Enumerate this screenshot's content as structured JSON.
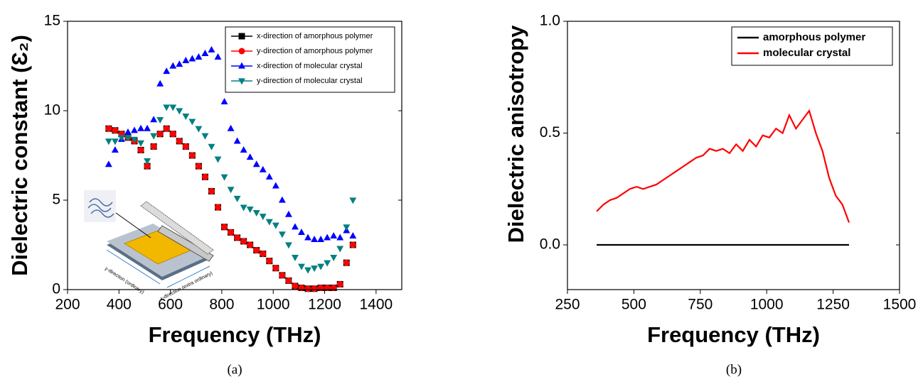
{
  "chart_data": [
    {
      "type": "scatter",
      "caption": "(a)",
      "x_label": "Frequency (THz)",
      "y_label": "Dielectric constant (Ɛ₂)",
      "annotations": [
        "y-direction (ordinary)",
        "x-direction (extra ordinary)"
      ],
      "x": [
        360,
        385,
        410,
        435,
        460,
        485,
        510,
        535,
        560,
        585,
        610,
        635,
        660,
        685,
        710,
        735,
        760,
        785,
        810,
        835,
        860,
        885,
        910,
        935,
        960,
        985,
        1010,
        1035,
        1060,
        1085,
        1110,
        1135,
        1160,
        1185,
        1210,
        1235,
        1260,
        1285,
        1310
      ],
      "series": [
        {
          "name": "x-direction of amorphous polymer",
          "color": "#000000",
          "marker": "square",
          "values": [
            9.0,
            8.9,
            8.7,
            8.5,
            8.3,
            7.8,
            6.9,
            8.0,
            8.7,
            9.0,
            8.7,
            8.3,
            8.0,
            7.5,
            6.9,
            6.3,
            5.5,
            4.6,
            3.5,
            3.2,
            2.9,
            2.7,
            2.5,
            2.2,
            2.0,
            1.6,
            1.2,
            0.8,
            0.5,
            0.2,
            0.1,
            0.05,
            0.05,
            0.1,
            0.1,
            0.1,
            0.3,
            1.5,
            2.5
          ]
        },
        {
          "name": "y-direction of amorphous polymer",
          "color": "#ff0000",
          "marker": "circle",
          "values": [
            9.0,
            8.9,
            8.7,
            8.5,
            8.3,
            7.8,
            6.9,
            8.0,
            8.7,
            9.0,
            8.7,
            8.3,
            8.0,
            7.5,
            6.9,
            6.3,
            5.5,
            4.6,
            3.5,
            3.2,
            2.9,
            2.7,
            2.5,
            2.2,
            2.0,
            1.6,
            1.2,
            0.8,
            0.5,
            0.2,
            0.1,
            0.05,
            0.05,
            0.1,
            0.1,
            0.1,
            0.3,
            1.5,
            2.5
          ]
        },
        {
          "name": "x-direction of molecular crystal",
          "color": "#0000ff",
          "marker": "triangle-up",
          "values": [
            7.0,
            7.8,
            8.4,
            8.8,
            8.9,
            9.0,
            9.0,
            9.5,
            11.5,
            12.2,
            12.5,
            12.6,
            12.8,
            12.9,
            13.0,
            13.2,
            13.4,
            13.0,
            10.5,
            9.0,
            8.3,
            7.8,
            7.4,
            7.0,
            6.7,
            6.3,
            5.8,
            5.0,
            4.2,
            3.5,
            3.2,
            2.9,
            2.8,
            2.8,
            2.9,
            3.0,
            2.9,
            3.3,
            3.0
          ]
        },
        {
          "name": "y-direction of molecular crystal",
          "color": "#008080",
          "marker": "triangle-down",
          "values": [
            8.3,
            8.3,
            8.5,
            8.5,
            8.4,
            8.2,
            7.2,
            8.6,
            9.5,
            10.2,
            10.2,
            10.0,
            9.7,
            9.4,
            9.0,
            8.6,
            8.0,
            7.3,
            6.3,
            5.6,
            5.1,
            4.6,
            4.5,
            4.3,
            4.1,
            3.8,
            3.6,
            3.1,
            2.5,
            1.8,
            1.3,
            1.1,
            1.2,
            1.3,
            1.5,
            1.8,
            2.3,
            3.5,
            5.0
          ]
        }
      ],
      "xlim": [
        200,
        1500
      ],
      "xticks": [
        200,
        400,
        600,
        800,
        1000,
        1200,
        1400
      ],
      "ylim": [
        0,
        15
      ],
      "yticks": [
        0,
        5,
        10,
        15
      ],
      "legend": "upper right"
    },
    {
      "type": "line",
      "caption": "(b)",
      "x_label": "Frequency (THz)",
      "y_label": "Dielectric anisotropy",
      "x": [
        360,
        385,
        410,
        435,
        460,
        485,
        510,
        535,
        560,
        585,
        610,
        635,
        660,
        685,
        710,
        735,
        760,
        785,
        810,
        835,
        860,
        885,
        910,
        935,
        960,
        985,
        1010,
        1035,
        1060,
        1085,
        1110,
        1135,
        1160,
        1185,
        1210,
        1235,
        1260,
        1285,
        1310
      ],
      "series": [
        {
          "name": "amorphous polymer",
          "color": "#000000",
          "values": [
            0,
            0,
            0,
            0,
            0,
            0,
            0,
            0,
            0,
            0,
            0,
            0,
            0,
            0,
            0,
            0,
            0,
            0,
            0,
            0,
            0,
            0,
            0,
            0,
            0,
            0,
            0,
            0,
            0,
            0,
            0,
            0,
            0,
            0,
            0,
            0,
            0,
            0,
            0
          ]
        },
        {
          "name": "molecular crystal",
          "color": "#ff0000",
          "values": [
            0.15,
            0.18,
            0.2,
            0.21,
            0.23,
            0.25,
            0.26,
            0.25,
            0.26,
            0.27,
            0.29,
            0.31,
            0.33,
            0.35,
            0.37,
            0.39,
            0.4,
            0.43,
            0.42,
            0.43,
            0.41,
            0.45,
            0.42,
            0.47,
            0.44,
            0.49,
            0.48,
            0.52,
            0.5,
            0.58,
            0.52,
            0.56,
            0.6,
            0.5,
            0.42,
            0.3,
            0.22,
            0.18,
            0.1
          ]
        }
      ],
      "xlim": [
        250,
        1500
      ],
      "xticks": [
        250,
        500,
        750,
        1000,
        1250,
        1500
      ],
      "ylim": [
        -0.2,
        1.0
      ],
      "yticks": [
        {
          "value": 0,
          "label": "0.0"
        },
        {
          "value": 0.5,
          "label": "0.5"
        },
        {
          "value": 1,
          "label": "1.0"
        }
      ],
      "legend": "upper right"
    }
  ]
}
